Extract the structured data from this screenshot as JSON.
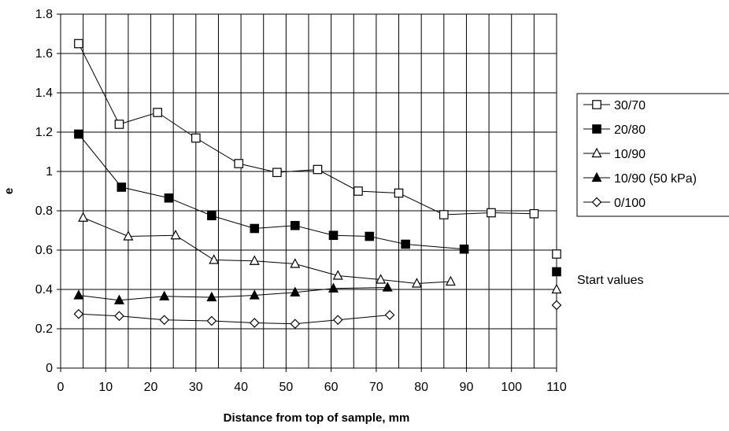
{
  "chart_data": {
    "type": "line",
    "title": "",
    "xlabel": "Distance from top of sample, mm",
    "ylabel": "e",
    "xlim": [
      0,
      110
    ],
    "ylim": [
      0,
      1.8
    ],
    "x_ticks": [
      "0",
      "10",
      "20",
      "30",
      "40",
      "50",
      "60",
      "70",
      "80",
      "90",
      "100",
      "110"
    ],
    "y_ticks": [
      "0",
      "0.2",
      "0.4",
      "0.6",
      "0.8",
      "1",
      "1.2",
      "1.4",
      "1.6",
      "1.8"
    ],
    "x_tick_values": [
      0,
      10,
      20,
      30,
      40,
      50,
      60,
      70,
      80,
      90,
      100,
      110
    ],
    "y_tick_values": [
      0,
      0.2,
      0.4,
      0.6,
      0.8,
      1.0,
      1.2,
      1.4,
      1.6,
      1.8
    ],
    "grid": "vertical lines every 5 mm, horizontal lines every 0.2",
    "legend_position": "right",
    "annotation": "Start values",
    "series": [
      {
        "name": "30/70",
        "marker": "square-open",
        "x": [
          4,
          13,
          21.5,
          30,
          39.5,
          48,
          57,
          66,
          75,
          85,
          95.5,
          105
        ],
        "y": [
          1.65,
          1.24,
          1.3,
          1.17,
          1.04,
          0.995,
          1.01,
          0.9,
          0.89,
          0.78,
          0.79,
          0.785
        ],
        "start_value": 0.58
      },
      {
        "name": "20/80",
        "marker": "square-filled",
        "x": [
          4,
          13.5,
          24,
          33.5,
          43,
          52,
          60.5,
          68.5,
          76.5,
          89.5
        ],
        "y": [
          1.19,
          0.92,
          0.865,
          0.775,
          0.71,
          0.725,
          0.675,
          0.67,
          0.63,
          0.605
        ],
        "start_value": 0.49
      },
      {
        "name": "10/90",
        "marker": "triangle-open",
        "x": [
          5,
          15,
          25.5,
          34,
          43,
          52,
          61.5,
          71,
          79,
          86.5
        ],
        "y": [
          0.765,
          0.67,
          0.675,
          0.55,
          0.545,
          0.53,
          0.47,
          0.45,
          0.43,
          0.44
        ],
        "start_value": 0.4
      },
      {
        "name": "10/90 (50 kPa)",
        "marker": "triangle-filled",
        "x": [
          4,
          13,
          23,
          33.5,
          43,
          52,
          60.5,
          72.5
        ],
        "y": [
          0.37,
          0.345,
          0.365,
          0.36,
          0.37,
          0.385,
          0.405,
          0.41
        ]
      },
      {
        "name": "0/100",
        "marker": "diamond-open",
        "x": [
          4,
          13,
          23,
          33.5,
          43,
          52,
          61.5,
          73
        ],
        "y": [
          0.275,
          0.265,
          0.245,
          0.24,
          0.23,
          0.225,
          0.245,
          0.27
        ],
        "start_value": 0.32
      }
    ]
  }
}
